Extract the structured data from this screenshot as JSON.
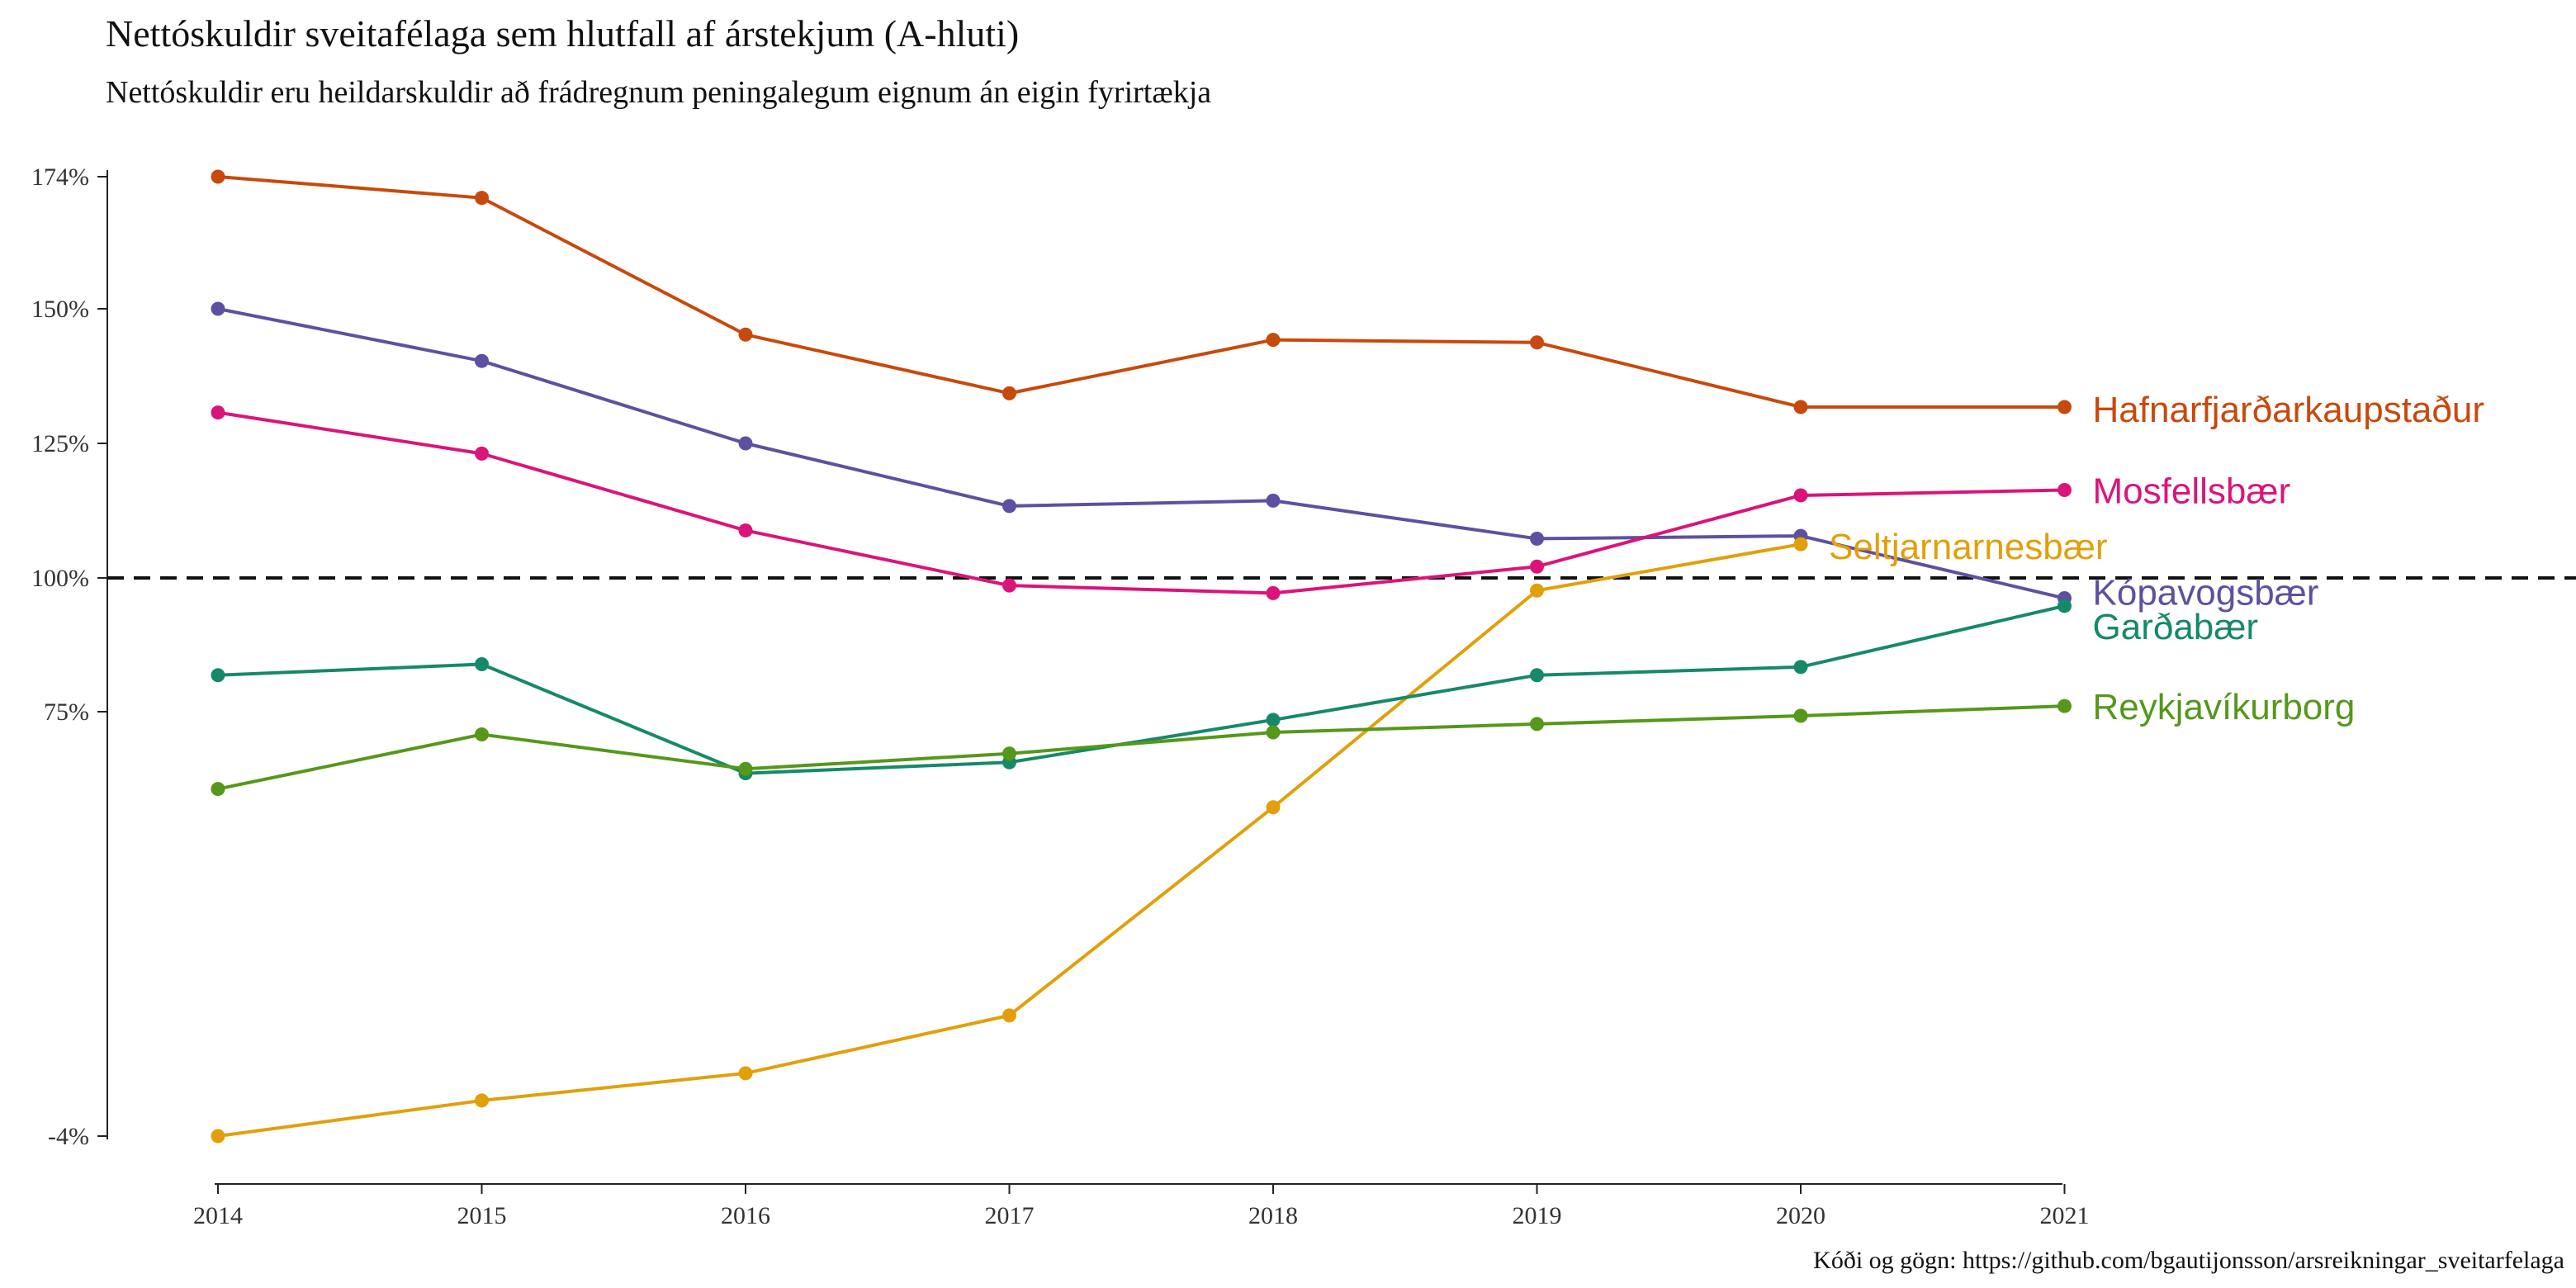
{
  "chart_data": {
    "type": "line",
    "title": "Nettóskuldir sveitafélaga sem hlutfall af árstekjum (A-hluti)",
    "subtitle": "Nettóskuldir eru heildarskuldir að frádregnum peningalegum eignum án eigin fyrirtækja",
    "caption": "Kóði og gögn: https://github.com/bgautijonsson/arsreikningar_sveitarfelaga",
    "x": [
      2014,
      2015,
      2016,
      2017,
      2018,
      2019,
      2020,
      2021
    ],
    "x_tick_labels": [
      "2014",
      "2015",
      "2016",
      "2017",
      "2018",
      "2019",
      "2020",
      "2021"
    ],
    "y_ticks": [
      -4,
      75,
      100,
      125,
      150,
      174
    ],
    "y_tick_labels": [
      "-4%",
      "75%",
      "100%",
      "125%",
      "150%",
      "174%"
    ],
    "y_scale": "log",
    "ylim": [
      -4,
      174
    ],
    "reference_line": {
      "y": 100,
      "style": "dashed"
    },
    "grid": false,
    "legend": "direct labels at line ends",
    "series": [
      {
        "name": "Hafnarfjarðarkaupstaður",
        "color": "#C8490C",
        "values": [
          174,
          170,
          145,
          134,
          144,
          143.5,
          131.5,
          131.5
        ]
      },
      {
        "name": "Kópavogsbær",
        "color": "#5E50A1",
        "values": [
          150,
          140,
          125,
          113,
          114,
          107,
          107.5,
          96
        ]
      },
      {
        "name": "Mosfellsbær",
        "color": "#DB1479",
        "values": [
          130.5,
          123,
          108.5,
          98.5,
          97,
          102,
          115,
          116
        ]
      },
      {
        "name": "Seltjarnarnesbær",
        "color": "#E1A00A",
        "values": [
          -4,
          1,
          5,
          14,
          53,
          97.5,
          106,
          null
        ]
      },
      {
        "name": "Garðabær",
        "color": "#16896A",
        "values": [
          81.5,
          83.5,
          60.5,
          63,
          73,
          81.5,
          83,
          94.5
        ]
      },
      {
        "name": "Reykjavíkurborg",
        "color": "#55981A",
        "values": [
          57,
          69.5,
          61.5,
          65,
          70,
          72,
          74,
          76
        ]
      }
    ]
  }
}
